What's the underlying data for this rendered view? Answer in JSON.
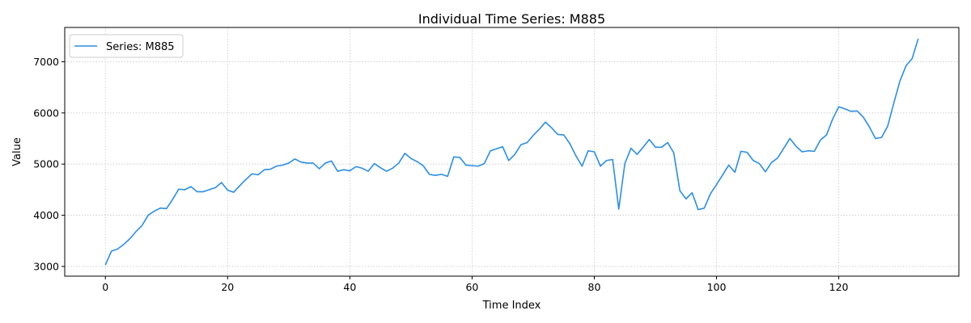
{
  "chart_data": {
    "type": "line",
    "title": "Individual Time Series: M885",
    "xlabel": "Time Index",
    "ylabel": "Value",
    "xlim": [
      -6.65,
      139.65
    ],
    "ylim": [
      2810,
      7670
    ],
    "xticks": [
      0,
      20,
      40,
      60,
      80,
      100,
      120
    ],
    "yticks": [
      3000,
      4000,
      5000,
      6000,
      7000
    ],
    "grid": true,
    "legend_position": "top-left",
    "series": [
      {
        "name": "Series: M885",
        "color": "#2b8ee6",
        "values": [
          3030,
          3300,
          3340,
          3430,
          3540,
          3680,
          3800,
          4000,
          4080,
          4140,
          4130,
          4310,
          4510,
          4500,
          4560,
          4460,
          4460,
          4500,
          4540,
          4640,
          4490,
          4450,
          4580,
          4700,
          4810,
          4790,
          4890,
          4900,
          4960,
          4980,
          5020,
          5100,
          5040,
          5020,
          5020,
          4910,
          5020,
          5060,
          4860,
          4890,
          4870,
          4950,
          4920,
          4860,
          5010,
          4930,
          4860,
          4920,
          5020,
          5210,
          5110,
          5050,
          4970,
          4800,
          4780,
          4800,
          4760,
          5140,
          5130,
          4980,
          4970,
          4960,
          5010,
          5260,
          5300,
          5340,
          5070,
          5190,
          5380,
          5420,
          5560,
          5680,
          5820,
          5710,
          5580,
          5570,
          5400,
          5160,
          4960,
          5260,
          5240,
          4960,
          5070,
          5090,
          4120,
          5010,
          5310,
          5190,
          5330,
          5480,
          5330,
          5330,
          5420,
          5220,
          4480,
          4320,
          4440,
          4110,
          4140,
          4420,
          4600,
          4790,
          4980,
          4840,
          5250,
          5230,
          5070,
          5010,
          4850,
          5030,
          5120,
          5310,
          5500,
          5350,
          5240,
          5260,
          5250,
          5470,
          5570,
          5880,
          6120,
          6080,
          6030,
          6040,
          5920,
          5730,
          5500,
          5520,
          5740,
          6190,
          6620,
          6920,
          7060,
          7450
        ]
      }
    ]
  }
}
